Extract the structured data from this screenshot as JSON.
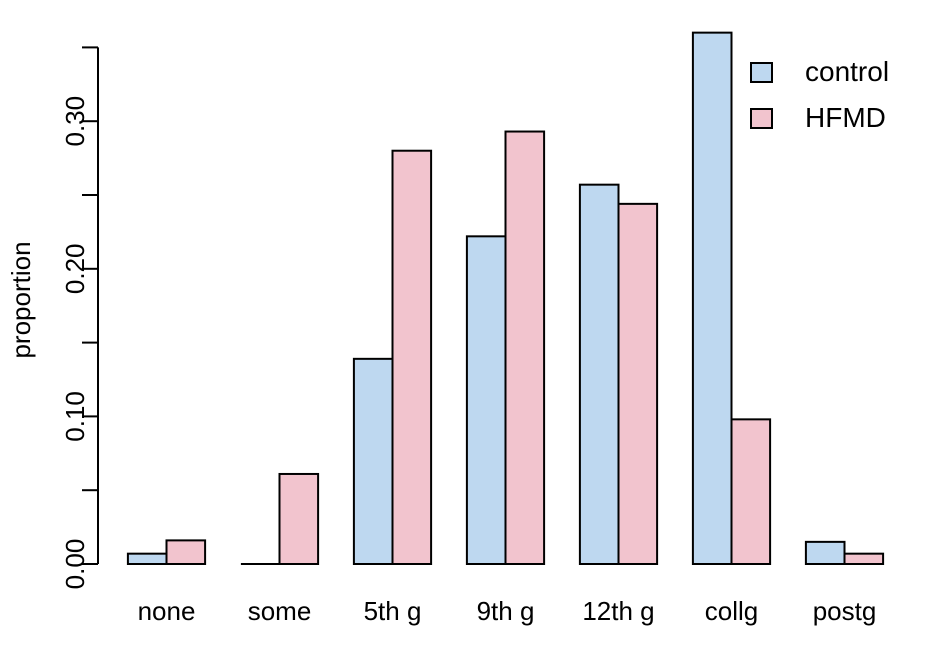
{
  "chart_data": {
    "type": "bar",
    "title": "",
    "xlabel": "",
    "ylabel": "proportion",
    "categories": [
      "none",
      "some",
      "5th g",
      "9th g",
      "12th g",
      "collg",
      "postg"
    ],
    "series": [
      {
        "name": "control",
        "color": "#BED8F0",
        "values": [
          0.007,
          0.0,
          0.139,
          0.222,
          0.257,
          0.36,
          0.015
        ]
      },
      {
        "name": "HFMD",
        "color": "#F2C4CE",
        "values": [
          0.016,
          0.061,
          0.28,
          0.293,
          0.244,
          0.098,
          0.007
        ]
      }
    ],
    "ylim": [
      0,
      0.35
    ],
    "y_axis": {
      "tick_step": 0.05,
      "tick_max": 0.35,
      "labeled_ticks": [
        0,
        0.1,
        0.2,
        0.3
      ],
      "labels": [
        "0.00",
        "0.10",
        "0.20",
        "0.30"
      ]
    },
    "legend": {
      "position": "top-right",
      "entries": [
        "control",
        "HFMD"
      ]
    },
    "grid": false,
    "bar_border_color": "#000000",
    "background": "#FFFFFF"
  }
}
